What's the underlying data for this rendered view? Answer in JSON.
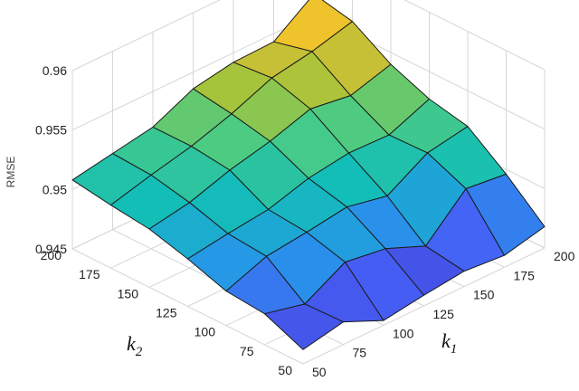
{
  "chart_data": {
    "type": "surface",
    "zlabel": "RMSE",
    "x_axis_label": {
      "symbol": "k",
      "subscript": "1"
    },
    "y_axis_label": {
      "symbol": "k",
      "subscript": "2"
    },
    "x": [
      50,
      75,
      100,
      125,
      150,
      175,
      200
    ],
    "y": [
      50,
      75,
      100,
      125,
      150,
      175,
      200
    ],
    "zlim": [
      0.945,
      0.96
    ],
    "x_ticks": [
      "50",
      "75",
      "100",
      "125",
      "150",
      "175",
      "200"
    ],
    "y_ticks": [
      "50",
      "75",
      "100",
      "125",
      "150",
      "175",
      "200"
    ],
    "z_ticks": [
      "0.945",
      "0.95",
      "0.955",
      "0.96"
    ],
    "grid": true,
    "colormap": "parula",
    "z_values": [
      [
        0.9462,
        0.9469,
        0.9454,
        0.9459,
        0.9463,
        0.946,
        0.9468
      ],
      [
        0.9476,
        0.9468,
        0.9487,
        0.9482,
        0.9468,
        0.95,
        0.9496
      ],
      [
        0.9479,
        0.9492,
        0.9496,
        0.9501,
        0.9494,
        0.9514,
        0.952
      ],
      [
        0.949,
        0.9495,
        0.9499,
        0.9509,
        0.9514,
        0.9513,
        0.9527
      ],
      [
        0.9499,
        0.9505,
        0.9516,
        0.9524,
        0.9535,
        0.953,
        0.954
      ],
      [
        0.9503,
        0.9512,
        0.952,
        0.9531,
        0.9545,
        0.9551,
        0.956
      ],
      [
        0.9508,
        0.9514,
        0.952,
        0.9536,
        0.9542,
        0.9543,
        0.9567
      ]
    ]
  }
}
